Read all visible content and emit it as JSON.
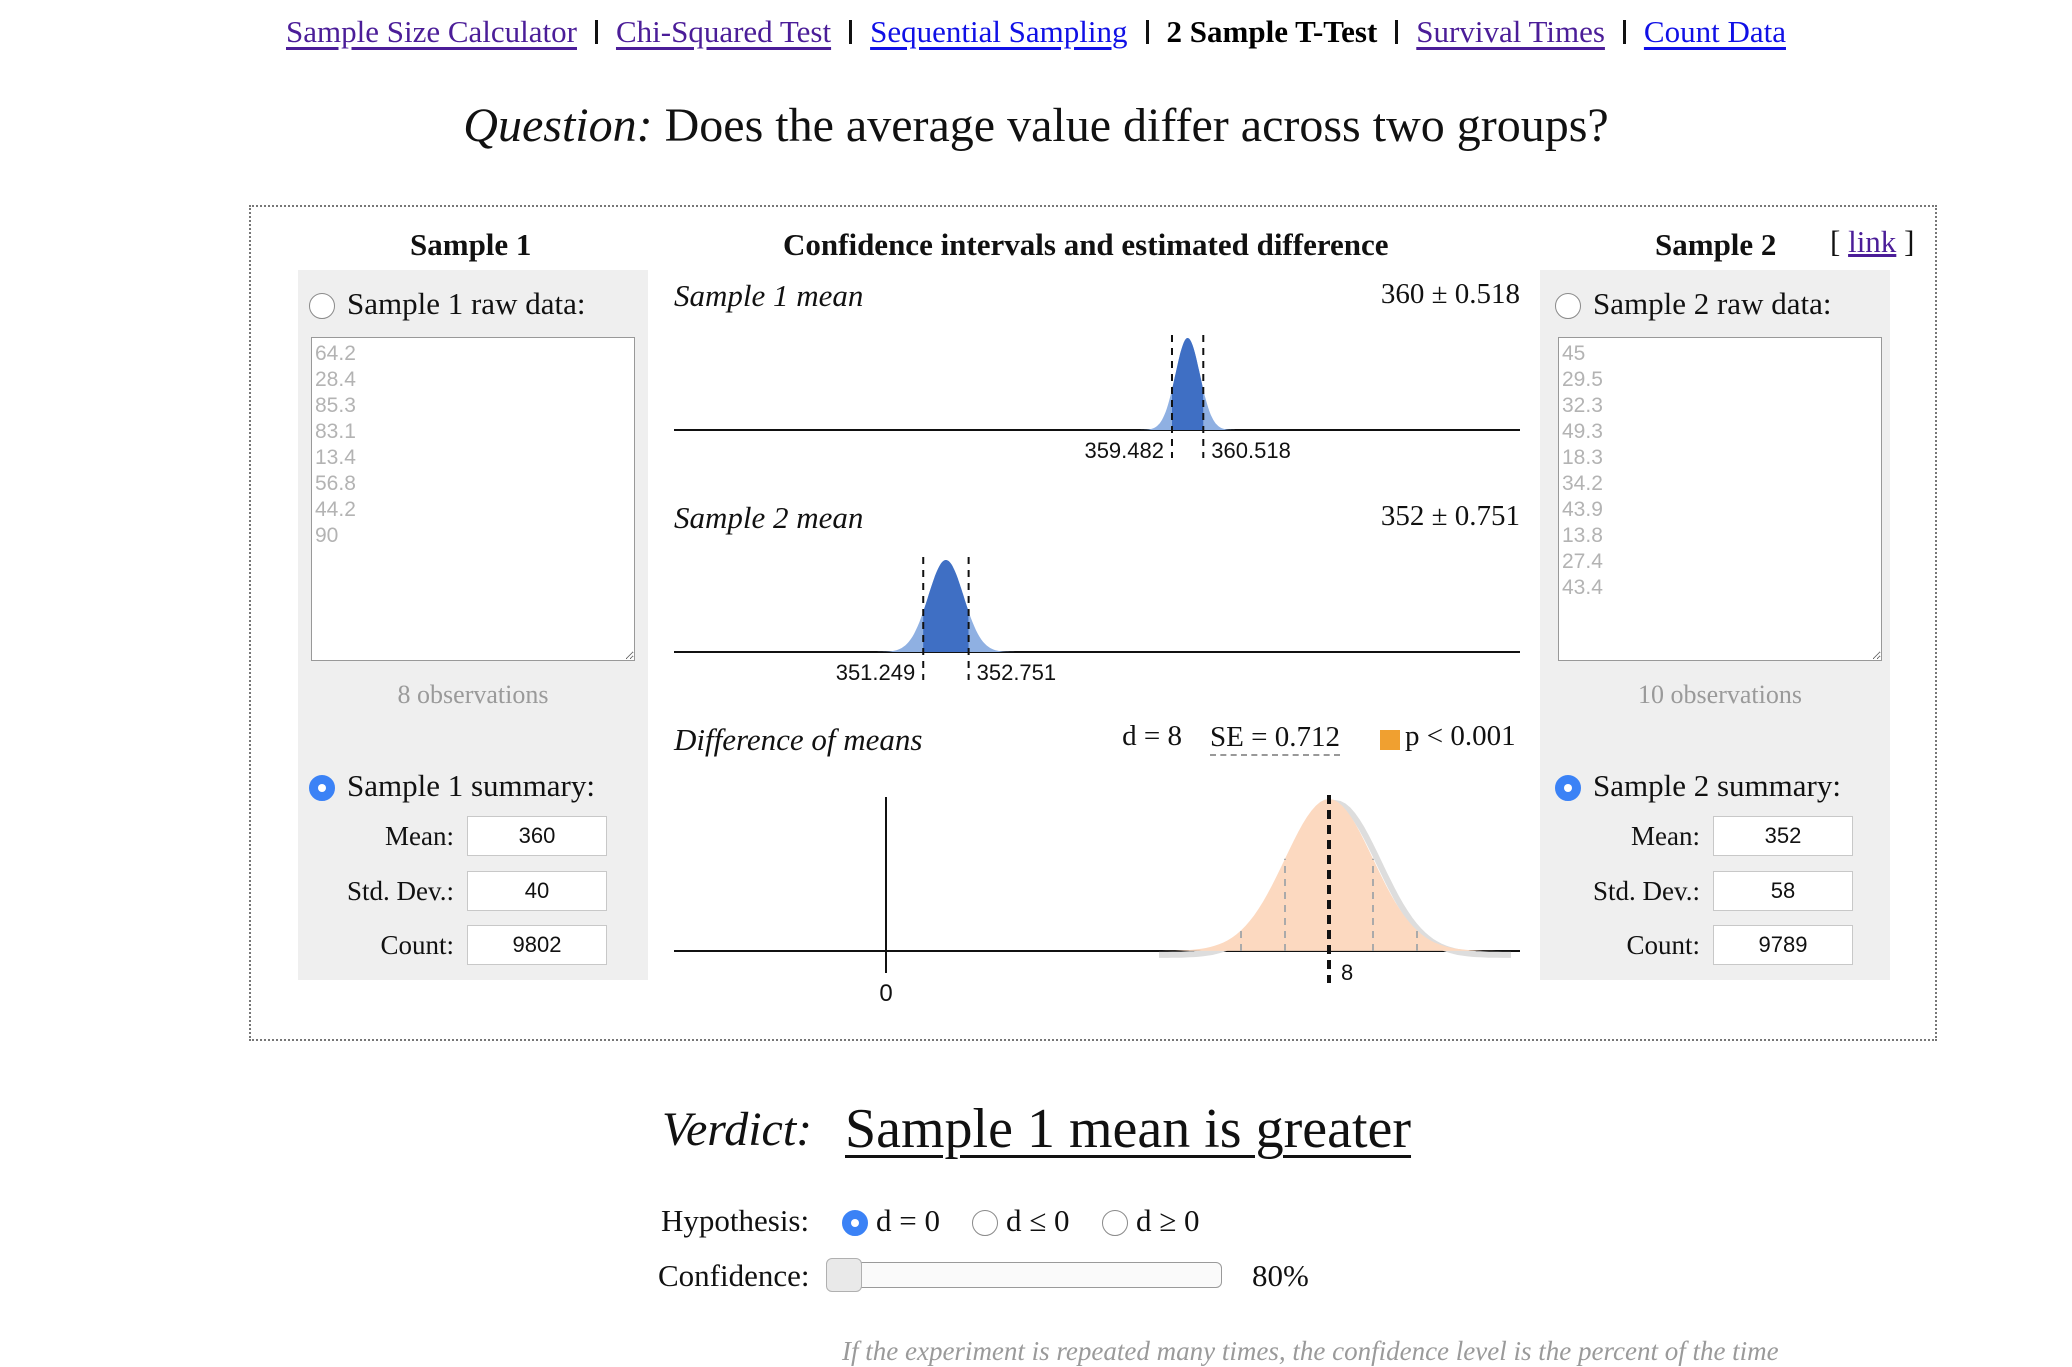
{
  "nav": {
    "links": [
      "Sample Size Calculator",
      "Chi-Squared Test",
      "Sequential Sampling",
      "2 Sample T-Test",
      "Survival Times",
      "Count Data"
    ]
  },
  "question": {
    "label": "Question:",
    "text": "Does the average value differ across two groups?"
  },
  "center": {
    "title": "Confidence intervals and estimated difference"
  },
  "link_label": "link",
  "sample1": {
    "title": "Sample 1",
    "raw_label": "Sample 1 raw data:",
    "raw_data": "64.2\n28.4\n85.3\n83.1\n13.4\n56.8\n44.2\n90",
    "observations": "8 observations",
    "summary_label": "Sample 1 summary:",
    "mean_label": "Mean:",
    "mean": "360",
    "sd_label": "Std. Dev.:",
    "sd": "40",
    "count_label": "Count:",
    "count": "9802"
  },
  "sample2": {
    "title": "Sample 2",
    "raw_label": "Sample 2 raw data:",
    "raw_data": "45\n29.5\n32.3\n49.3\n18.3\n34.2\n43.9\n13.8\n27.4\n43.4",
    "observations": "10 observations",
    "summary_label": "Sample 2 summary:",
    "mean_label": "Mean:",
    "mean": "352",
    "sd_label": "Std. Dev.:",
    "sd": "58",
    "count_label": "Count:",
    "count": "9789"
  },
  "chart_data": [
    {
      "type": "area",
      "title": "Sample 1 mean",
      "value_text": "360 ± 0.518",
      "mean": 360,
      "ci": [
        359.482,
        360.518
      ],
      "tick_labels": [
        "359.482",
        "360.518"
      ],
      "color": "#3f6fc4"
    },
    {
      "type": "area",
      "title": "Sample 2 mean",
      "value_text": "352 ± 0.751",
      "mean": 352,
      "ci": [
        351.249,
        352.751
      ],
      "tick_labels": [
        "351.249",
        "352.751"
      ],
      "color": "#3f6fc4"
    },
    {
      "type": "area",
      "title": "Difference of means",
      "d_text": "d = 8",
      "se_text": "SE = 0.712",
      "p_text": "p < 0.001",
      "p_color": "#f0a030",
      "d": 8,
      "se": 0.712,
      "tick_labels": [
        "0",
        "8"
      ],
      "color": "#fcd9c0"
    }
  ],
  "verdict": {
    "label": "Verdict:",
    "text": "Sample 1 mean is greater"
  },
  "hypothesis": {
    "label": "Hypothesis:",
    "options": [
      "d = 0",
      "d ≤ 0",
      "d ≥ 0"
    ],
    "selected": 0
  },
  "confidence": {
    "label": "Confidence:",
    "value": "80%",
    "level": 0.8
  },
  "footnote": "If the experiment is repeated many times, the confidence level is the percent of the time"
}
